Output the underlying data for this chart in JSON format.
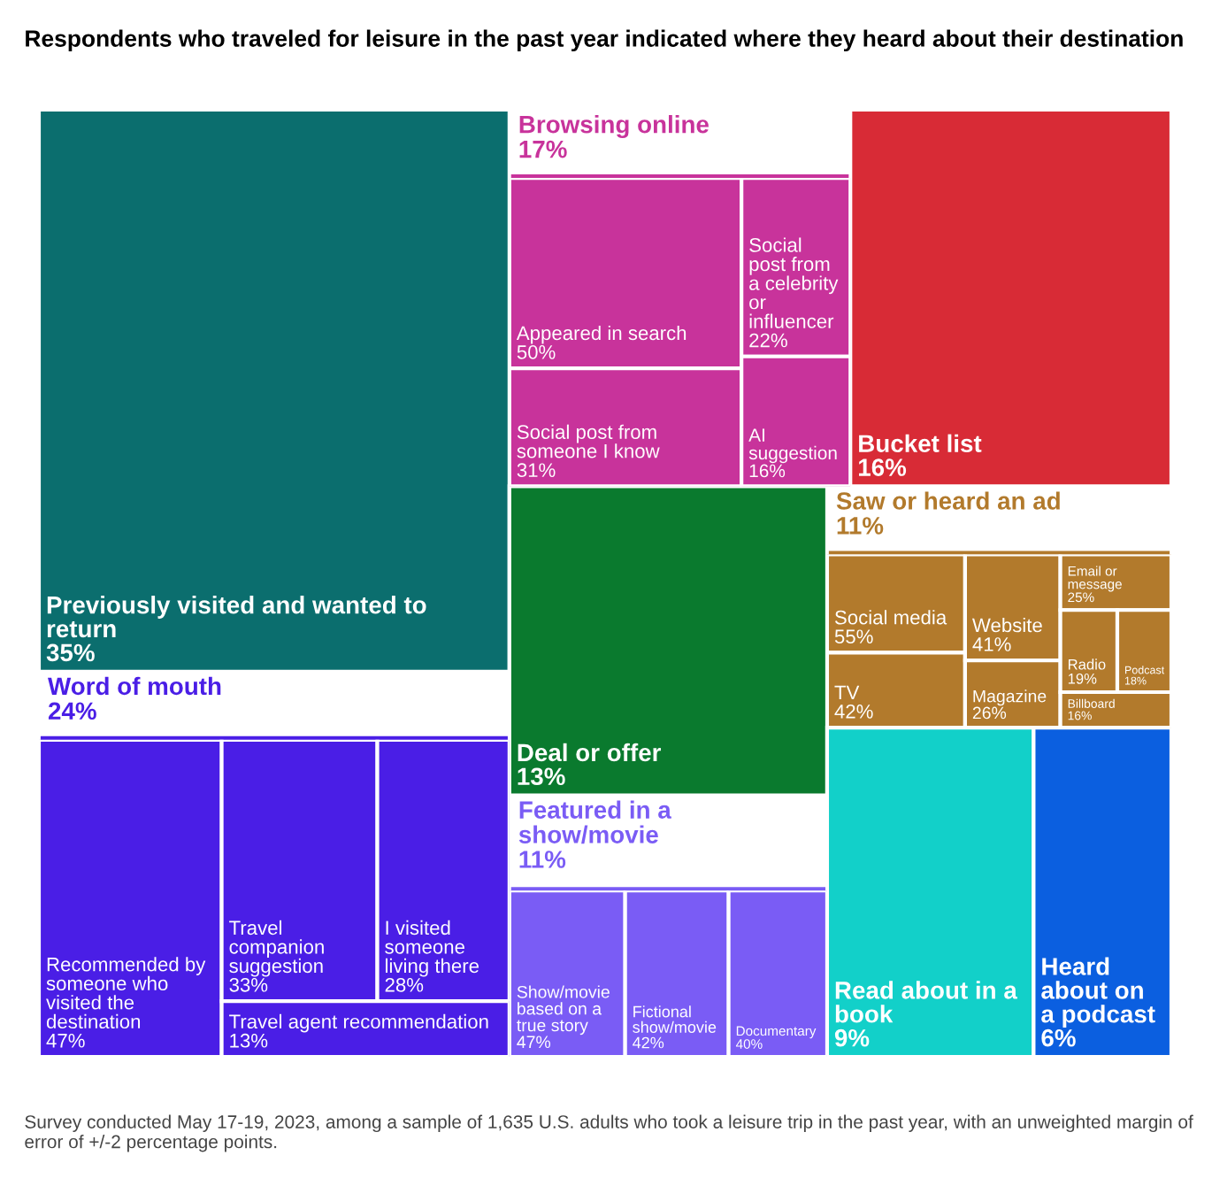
{
  "chart_data": [
    {
      "type": "other",
      "title": "Respondents who traveled for leisure in the past year indicated where they heard about their destination",
      "categories": [
        "Previously visited and wanted to return",
        "Word of mouth",
        "Browsing online",
        "Bucket list",
        "Deal or offer",
        "Featured in a show/movie",
        "Saw or heard an ad",
        "Read about in a book",
        "Heard about on a podcast"
      ],
      "values": [
        35,
        24,
        17,
        16,
        13,
        11,
        11,
        9,
        6
      ],
      "value_labels": [
        "35%",
        "24%",
        "17%",
        "16%",
        "13%",
        "11%",
        "11%",
        "9%",
        "6%"
      ],
      "colors": [
        "#0b6e6e",
        "#4a1ee6",
        "#c8339b",
        "#d82b36",
        "#0a7a2e",
        "#7a5cf5",
        "#b27a2c",
        "#12d0c9",
        "#0b5fe0"
      ],
      "annotations": [
        "Survey conducted May 17-19, 2023, among a sample of 1,635 U.S. adults who took a leisure trip in the past year, with an unweighted margin of error of +/-2 percentage points."
      ]
    },
    {
      "type": "other",
      "categories": [
        "Recommended by someone who visited the destination",
        "Travel companion suggestion",
        "I visited someone living there",
        "Travel agent recommendation"
      ],
      "values": [
        47,
        33,
        28,
        13
      ],
      "value_labels": [
        "47%",
        "33%",
        "28%",
        "13%"
      ],
      "colors": [
        "#4a1ee6",
        "#4a1ee6",
        "#4a1ee6",
        "#4a1ee6"
      ]
    },
    {
      "type": "other",
      "categories": [
        "Appeared in search",
        "Social post from someone I know",
        "Social post from a celebrity or influencer",
        "AI suggestion"
      ],
      "values": [
        50,
        31,
        22,
        16
      ],
      "value_labels": [
        "50%",
        "31%",
        "22%",
        "16%"
      ],
      "colors": [
        "#c8339b",
        "#c8339b",
        "#c8339b",
        "#c8339b"
      ]
    },
    {
      "type": "other",
      "categories": [
        "Show/movie based on a true story",
        "Fictional show/movie",
        "Documentary"
      ],
      "values": [
        47,
        42,
        40
      ],
      "value_labels": [
        "47%",
        "42%",
        "40%"
      ],
      "colors": [
        "#7a5cf5",
        "#7a5cf5",
        "#7a5cf5"
      ]
    },
    {
      "type": "other",
      "categories": [
        "Social media",
        "TV",
        "Website",
        "Magazine",
        "Email or message",
        "Radio",
        "Podcast",
        "Billboard"
      ],
      "values": [
        55,
        42,
        41,
        26,
        25,
        19,
        18,
        16
      ],
      "value_labels": [
        "55%",
        "42%",
        "41%",
        "26%",
        "25%",
        "19%",
        "18%",
        "16%"
      ],
      "colors": [
        "#b27a2c",
        "#b27a2c",
        "#b27a2c",
        "#b27a2c",
        "#b27a2c",
        "#b27a2c",
        "#b27a2c",
        "#b27a2c"
      ]
    }
  ]
}
